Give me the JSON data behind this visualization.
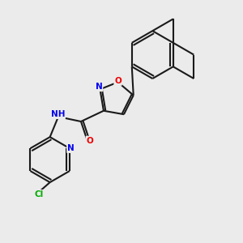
{
  "background_color": "#ebebeb",
  "bond_color": "#1a1a1a",
  "atom_colors": {
    "N": "#0000ee",
    "O": "#ee0000",
    "Cl": "#00aa00",
    "H": "#666666",
    "C": "#1a1a1a"
  },
  "figsize": [
    3.0,
    3.0
  ],
  "dpi": 100
}
